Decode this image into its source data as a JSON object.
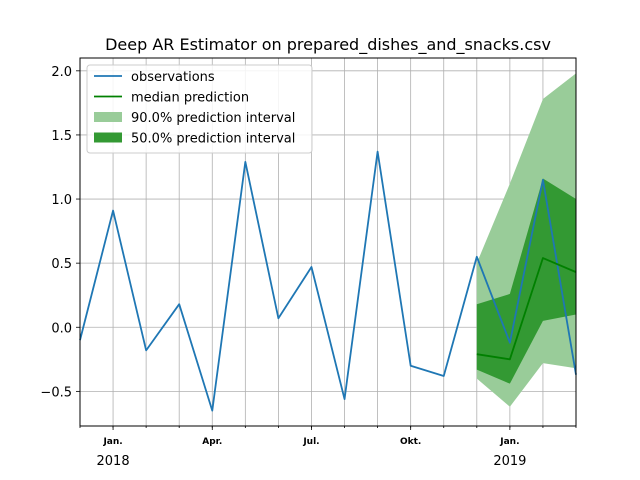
{
  "chart_data": {
    "type": "line",
    "title": "Deep AR Estimator on prepared_dishes_and_snacks.csv",
    "xlabel": "",
    "ylabel": "",
    "ylim": [
      -0.77,
      2.1
    ],
    "grid": true,
    "legend_position": "top-left",
    "yticks": [
      "2.0",
      "1.5",
      "1.0",
      "0.5",
      "0.0",
      "−0.5"
    ],
    "ytick_values": [
      2.0,
      1.5,
      1.0,
      0.5,
      0.0,
      -0.5
    ],
    "xticks": [
      {
        "label": "Jan.",
        "month": "2018-01"
      },
      {
        "label": "Apr.",
        "month": "2018-04"
      },
      {
        "label": "Jul.",
        "month": "2018-07"
      },
      {
        "label": "Okt.",
        "month": "2018-10"
      },
      {
        "label": "Jan.",
        "month": "2019-01"
      }
    ],
    "year_labels": [
      {
        "label": "2018",
        "month": "2018-01"
      },
      {
        "label": "2019",
        "month": "2019-01"
      }
    ],
    "observations": {
      "name": "observations",
      "color": "#1f77b4",
      "x": [
        "2017-12",
        "2018-01",
        "2018-02",
        "2018-03",
        "2018-04",
        "2018-05",
        "2018-06",
        "2018-07",
        "2018-08",
        "2018-09",
        "2018-10",
        "2018-11",
        "2018-12",
        "2019-01",
        "2019-02",
        "2019-03"
      ],
      "values": [
        -0.1,
        0.91,
        -0.18,
        0.18,
        -0.65,
        1.29,
        0.07,
        0.47,
        -0.56,
        1.37,
        -0.3,
        -0.38,
        0.55,
        -0.12,
        1.15,
        -0.37
      ]
    },
    "median": {
      "name": "median prediction",
      "color": "#008000",
      "x": [
        "2018-12",
        "2019-01",
        "2019-02",
        "2019-03"
      ],
      "values": [
        -0.21,
        -0.25,
        0.54,
        0.43
      ]
    },
    "interval_90": {
      "name": "90.0% prediction interval",
      "color": "#99cc99",
      "x": [
        "2018-12",
        "2019-01",
        "2019-02",
        "2019-03"
      ],
      "lower": [
        -0.4,
        -0.62,
        -0.28,
        -0.32
      ],
      "upper": [
        0.5,
        1.12,
        1.78,
        1.98
      ]
    },
    "interval_50": {
      "name": "50.0% prediction interval",
      "color": "#339933",
      "x": [
        "2018-12",
        "2019-01",
        "2019-02",
        "2019-03"
      ],
      "lower": [
        -0.33,
        -0.44,
        0.05,
        0.1
      ],
      "upper": [
        0.18,
        0.26,
        1.16,
        1.0
      ]
    }
  }
}
